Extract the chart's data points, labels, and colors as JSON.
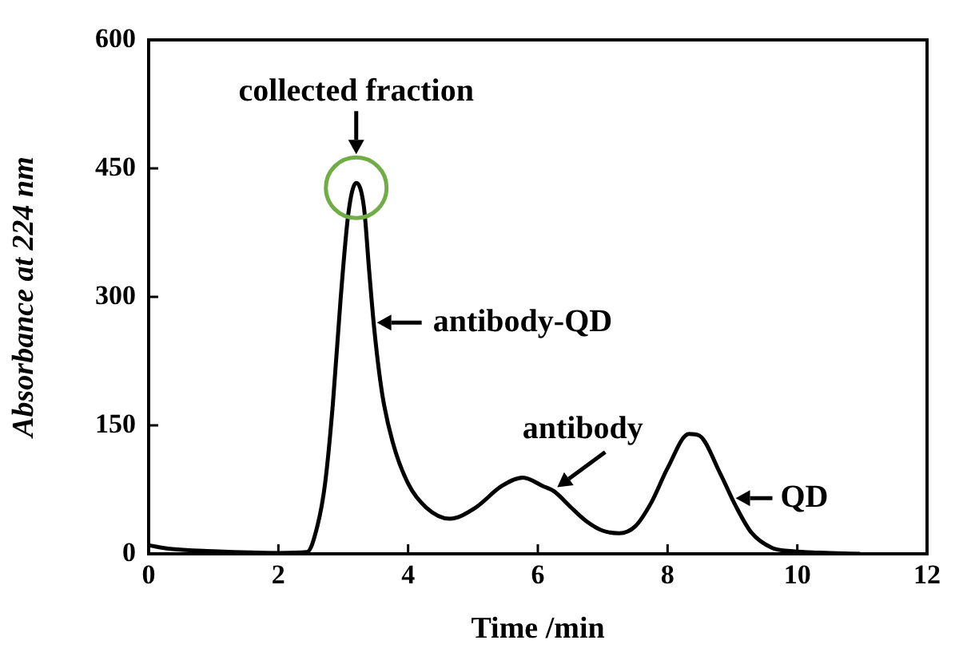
{
  "chart_data": {
    "type": "line",
    "xlabel": "Time /min",
    "ylabel": "Absorbance at 224 nm",
    "xlim": [
      0,
      12
    ],
    "xticks": [
      0,
      2,
      4,
      6,
      8,
      10,
      12
    ],
    "ylim": [
      0,
      600
    ],
    "yticks": [
      0,
      150,
      300,
      450,
      600
    ],
    "grid": false,
    "legend": false,
    "marker": "none",
    "line_style": "solid",
    "series": [
      {
        "color": "#000000",
        "x": [
          0,
          0.3,
          1,
          2,
          2.44,
          2.6,
          2.72,
          2.84,
          2.96,
          3.08,
          3.2,
          3.32,
          3.4,
          3.48,
          3.6,
          3.76,
          4,
          4.28,
          4.64,
          5.04,
          5.44,
          5.77,
          6.08,
          6.25,
          6.5,
          6.75,
          7.0,
          7.25,
          7.5,
          7.75,
          8.0,
          8.33,
          8.49,
          8.81,
          9.05,
          9.29,
          9.61,
          9.93,
          10.5,
          10.97
        ],
        "values": [
          10,
          6,
          3,
          1,
          2,
          32,
          82,
          175,
          298,
          398,
          433,
          404,
          330,
          261,
          187,
          131,
          82,
          54,
          41,
          54,
          79,
          89,
          79,
          73,
          55,
          38,
          27,
          24,
          32,
          60,
          100,
          140,
          138,
          94,
          56,
          25,
          7,
          3,
          1,
          0
        ]
      }
    ],
    "annotations": [
      {
        "text": "collected fraction",
        "x": 3.2,
        "y": 433
      },
      {
        "text": "antibody-QD",
        "x": 3.47,
        "y": 270
      },
      {
        "text": "antibody",
        "x": 6.25,
        "y": 74
      },
      {
        "text": "QD",
        "x": 9.0,
        "y": 65
      }
    ]
  }
}
